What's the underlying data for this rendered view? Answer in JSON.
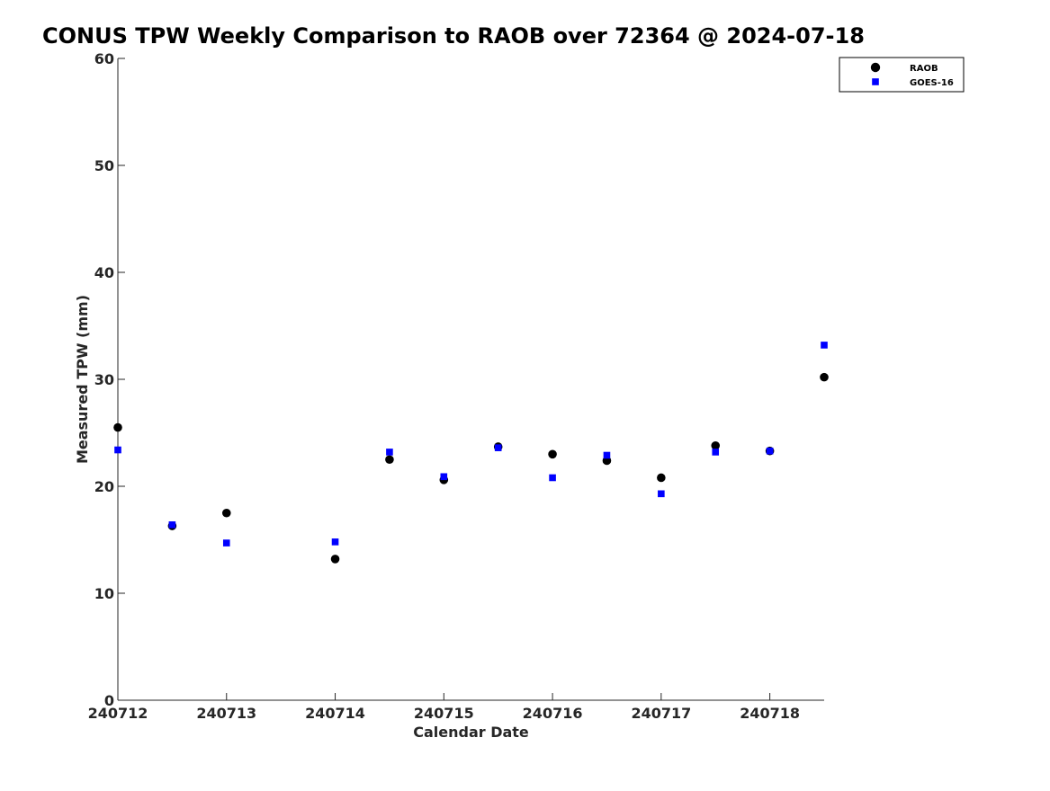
{
  "chart_data": {
    "type": "scatter",
    "title": "CONUS TPW Weekly Comparison to RAOB over 72364 @ 2024-07-18",
    "xlabel": "Calendar Date",
    "ylabel": "Measured TPW (mm)",
    "xlim": [
      "2024-07-12T00:00",
      "2024-07-18T12:00"
    ],
    "ylim": [
      0,
      60
    ],
    "x_ticks": [
      {
        "value": "2024-07-12T00:00",
        "label": "240712"
      },
      {
        "value": "2024-07-13T00:00",
        "label": "240713"
      },
      {
        "value": "2024-07-14T00:00",
        "label": "240714"
      },
      {
        "value": "2024-07-15T00:00",
        "label": "240715"
      },
      {
        "value": "2024-07-16T00:00",
        "label": "240716"
      },
      {
        "value": "2024-07-17T00:00",
        "label": "240717"
      },
      {
        "value": "2024-07-18T00:00",
        "label": "240718"
      }
    ],
    "y_ticks": [
      0,
      10,
      20,
      30,
      40,
      50,
      60
    ],
    "grid": false,
    "legend_position": "top-right",
    "series": [
      {
        "name": "RAOB",
        "marker": "circle",
        "color": "#000000",
        "points": [
          {
            "x": "2024-07-12T00:00",
            "y": 25.5
          },
          {
            "x": "2024-07-12T12:00",
            "y": 16.3
          },
          {
            "x": "2024-07-13T00:00",
            "y": 17.5
          },
          {
            "x": "2024-07-14T00:00",
            "y": 13.2
          },
          {
            "x": "2024-07-14T12:00",
            "y": 22.5
          },
          {
            "x": "2024-07-15T00:00",
            "y": 20.6
          },
          {
            "x": "2024-07-15T12:00",
            "y": 23.7
          },
          {
            "x": "2024-07-16T00:00",
            "y": 23.0
          },
          {
            "x": "2024-07-16T12:00",
            "y": 22.4
          },
          {
            "x": "2024-07-17T00:00",
            "y": 20.8
          },
          {
            "x": "2024-07-17T12:00",
            "y": 23.8
          },
          {
            "x": "2024-07-18T00:00",
            "y": 23.3
          },
          {
            "x": "2024-07-18T12:00",
            "y": 30.2
          }
        ]
      },
      {
        "name": "GOES-16",
        "marker": "square",
        "color": "#0000ff",
        "points": [
          {
            "x": "2024-07-12T00:00",
            "y": 23.4
          },
          {
            "x": "2024-07-12T12:00",
            "y": 16.4
          },
          {
            "x": "2024-07-13T00:00",
            "y": 14.7
          },
          {
            "x": "2024-07-14T00:00",
            "y": 14.8
          },
          {
            "x": "2024-07-14T12:00",
            "y": 23.2
          },
          {
            "x": "2024-07-15T00:00",
            "y": 20.9
          },
          {
            "x": "2024-07-15T12:00",
            "y": 23.6
          },
          {
            "x": "2024-07-16T00:00",
            "y": 20.8
          },
          {
            "x": "2024-07-16T12:00",
            "y": 22.9
          },
          {
            "x": "2024-07-17T00:00",
            "y": 19.3
          },
          {
            "x": "2024-07-17T12:00",
            "y": 23.2
          },
          {
            "x": "2024-07-18T00:00",
            "y": 23.3
          },
          {
            "x": "2024-07-18T12:00",
            "y": 33.2
          }
        ]
      }
    ]
  }
}
